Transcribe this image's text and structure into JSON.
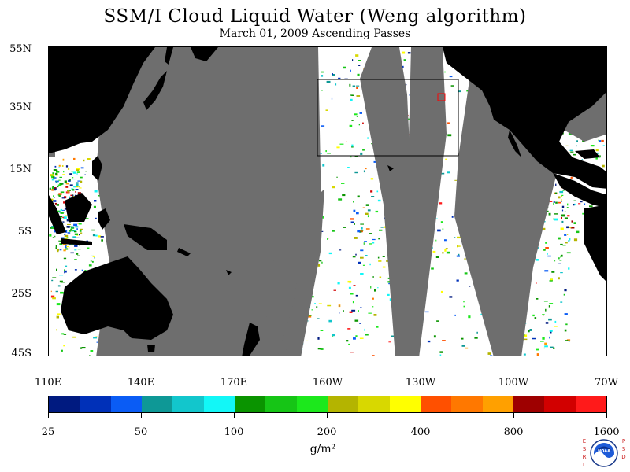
{
  "title": "SSM/I Cloud Liquid Water (Weng algorithm)",
  "subtitle": "March 01, 2009  Ascending Passes",
  "lat_labels": [
    "55N",
    "35N",
    "15N",
    "5S",
    "25S",
    "45S"
  ],
  "lon_labels": [
    "110E",
    "140E",
    "170E",
    "160W",
    "130W",
    "100W",
    "70W"
  ],
  "colorbar": {
    "ticks": [
      "25",
      "50",
      "100",
      "200",
      "400",
      "800",
      "1600"
    ],
    "units": "g/m²",
    "colors": [
      "#001a80",
      "#0030b8",
      "#0a5cf5",
      "#0e9896",
      "#12c6cc",
      "#12f7f7",
      "#0a9400",
      "#16c516",
      "#1ce81c",
      "#b4b400",
      "#d8d800",
      "#ffff00",
      "#ff5000",
      "#ff7800",
      "#ffa000",
      "#9e0000",
      "#d20000",
      "#ff1a1a"
    ]
  },
  "map_colors": {
    "land": "#000000",
    "no_data": "#6e6e6e",
    "clear_ocean": "#ffffff"
  },
  "logo": {
    "left_letters": "ESRL",
    "right_letters": "PSD",
    "center_text": "NOAA"
  }
}
